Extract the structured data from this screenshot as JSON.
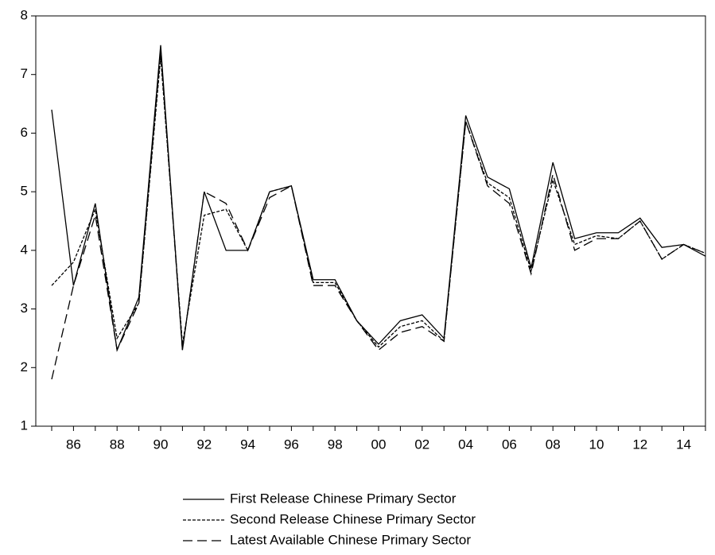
{
  "chart_data": {
    "type": "line",
    "categories": [
      null,
      "86",
      null,
      "88",
      null,
      "90",
      null,
      "92",
      null,
      "94",
      null,
      "96",
      null,
      "98",
      null,
      "00",
      null,
      "02",
      null,
      "04",
      null,
      "06",
      null,
      "08",
      null,
      "10",
      null,
      "12",
      null,
      "14",
      null
    ],
    "series": [
      {
        "name": "First Release Chinese Primary Sector",
        "color": "#000000",
        "line_style": "solid",
        "values": [
          6.4,
          3.4,
          4.8,
          2.3,
          3.2,
          7.5,
          2.3,
          5.0,
          4.0,
          4.0,
          5.0,
          5.1,
          3.5,
          3.5,
          2.8,
          2.4,
          2.8,
          2.9,
          2.5,
          6.3,
          5.25,
          5.05,
          3.7,
          5.5,
          4.2,
          4.3,
          4.3,
          4.55,
          4.05,
          4.1,
          3.9
        ]
      },
      {
        "name": "Second Release Chinese Primary Sector",
        "color": "#000000",
        "line_style": "dashed",
        "values": [
          3.4,
          3.8,
          4.7,
          2.5,
          3.1,
          7.3,
          2.4,
          4.6,
          4.7,
          4.0,
          5.0,
          5.1,
          3.45,
          3.45,
          2.8,
          2.35,
          2.7,
          2.8,
          2.45,
          6.2,
          5.15,
          4.9,
          3.65,
          5.2,
          4.1,
          4.25,
          4.2,
          4.5,
          3.85,
          4.1,
          3.95
        ]
      },
      {
        "name": "Latest Available Chinese Primary Sector",
        "color": "#000000",
        "line_style": "long-dashed",
        "values": [
          1.8,
          3.4,
          4.6,
          2.3,
          3.1,
          7.4,
          2.3,
          5.0,
          4.8,
          4.0,
          4.9,
          5.1,
          3.4,
          3.4,
          2.8,
          2.3,
          2.6,
          2.7,
          2.45,
          6.2,
          5.1,
          4.8,
          3.6,
          5.3,
          4.0,
          4.2,
          4.2,
          4.5,
          3.85,
          4.1,
          3.95
        ]
      }
    ],
    "ylim": [
      1,
      8
    ],
    "yticks": [
      1,
      2,
      3,
      4,
      5,
      6,
      7,
      8
    ],
    "grid": false,
    "legend": "bottom"
  }
}
